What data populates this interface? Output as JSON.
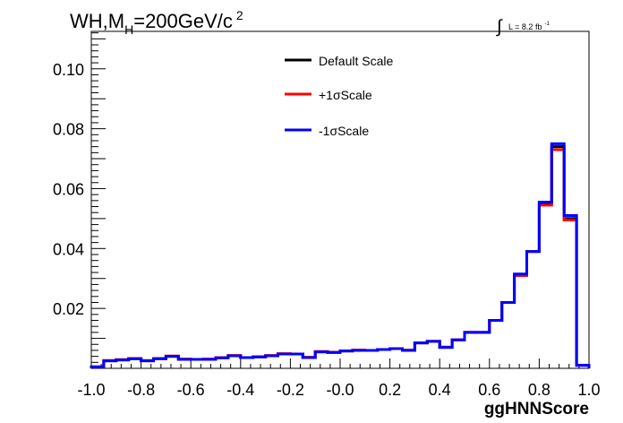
{
  "title": {
    "prefix": "WH,M",
    "subscript": "H",
    "suffix": "=200GeV/c",
    "superscript": "2"
  },
  "lumi": {
    "integral": "∫",
    "text": "L = 8.2 fb",
    "superscript": "-1"
  },
  "chart_data": {
    "type": "line",
    "style": "step histogram",
    "xlabel": "ggHNNScore",
    "ylabel": "",
    "xlim": [
      -1.0,
      1.0
    ],
    "ylim": [
      0.0,
      0.1125
    ],
    "xticks": [
      "-1.0",
      "-0.8",
      "-0.6",
      "-0.4",
      "-0.2",
      "-0.0",
      "0.2",
      "0.4",
      "0.6",
      "0.8",
      "1.0"
    ],
    "yticks": [
      "0.02",
      "0.04",
      "0.06",
      "0.08",
      "0.10"
    ],
    "grid": false,
    "legend_position": "top-center",
    "bin_edges": [
      -1.0,
      -0.95,
      -0.9,
      -0.85,
      -0.8,
      -0.75,
      -0.7,
      -0.65,
      -0.6,
      -0.55,
      -0.5,
      -0.45,
      -0.4,
      -0.35,
      -0.3,
      -0.25,
      -0.2,
      -0.15,
      -0.1,
      -0.05,
      0.0,
      0.05,
      0.1,
      0.15,
      0.2,
      0.25,
      0.3,
      0.35,
      0.4,
      0.45,
      0.5,
      0.55,
      0.6,
      0.65,
      0.7,
      0.75,
      0.8,
      0.85,
      0.9,
      0.95,
      1.0
    ],
    "series": [
      {
        "name": "Default Scale",
        "color": "#000000",
        "values": [
          0.0005,
          0.0025,
          0.0028,
          0.0032,
          0.0025,
          0.0032,
          0.004,
          0.003,
          0.003,
          0.003,
          0.0035,
          0.0042,
          0.0036,
          0.0038,
          0.0042,
          0.0048,
          0.0048,
          0.0036,
          0.0055,
          0.0053,
          0.0058,
          0.006,
          0.006,
          0.0063,
          0.0066,
          0.006,
          0.0085,
          0.009,
          0.007,
          0.0095,
          0.012,
          0.012,
          0.016,
          0.022,
          0.031,
          0.039,
          0.055,
          0.074,
          0.05,
          0.001
        ]
      },
      {
        "name": "+1σScale",
        "color": "#ff0000",
        "values": [
          0.0005,
          0.0026,
          0.0029,
          0.0033,
          0.0026,
          0.0033,
          0.0041,
          0.0031,
          0.003,
          0.0031,
          0.0036,
          0.0043,
          0.0036,
          0.0039,
          0.0043,
          0.0049,
          0.0048,
          0.0037,
          0.0056,
          0.0054,
          0.0058,
          0.0061,
          0.006,
          0.0063,
          0.0066,
          0.0061,
          0.0085,
          0.009,
          0.0071,
          0.0095,
          0.012,
          0.012,
          0.016,
          0.022,
          0.031,
          0.039,
          0.0545,
          0.073,
          0.0495,
          0.001
        ]
      },
      {
        "name": "-1σScale",
        "color": "#0000ff",
        "values": [
          0.0005,
          0.0025,
          0.0028,
          0.0032,
          0.0025,
          0.0032,
          0.004,
          0.003,
          0.003,
          0.003,
          0.0035,
          0.0042,
          0.0036,
          0.0038,
          0.0042,
          0.0048,
          0.0048,
          0.0036,
          0.0055,
          0.0053,
          0.0058,
          0.006,
          0.006,
          0.0063,
          0.0066,
          0.006,
          0.0085,
          0.009,
          0.007,
          0.0095,
          0.012,
          0.012,
          0.016,
          0.022,
          0.0315,
          0.039,
          0.0555,
          0.075,
          0.051,
          0.001
        ]
      }
    ]
  }
}
